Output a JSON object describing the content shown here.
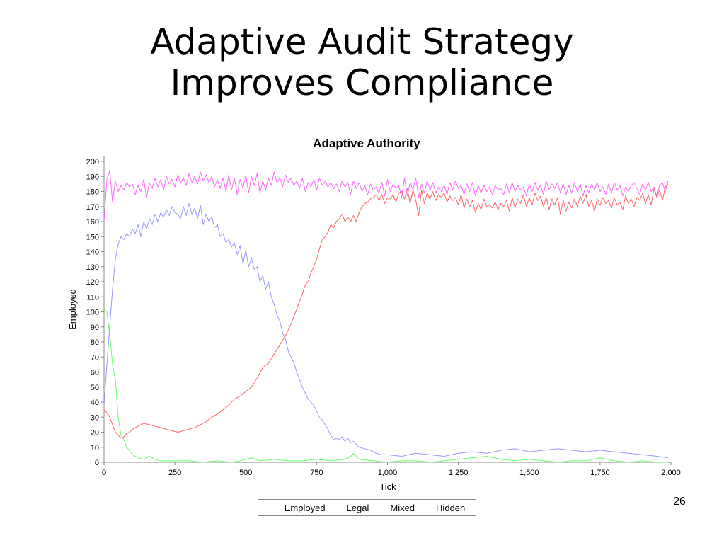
{
  "slide": {
    "title_line1": "Adaptive Audit Strategy",
    "title_line2": "Improves Compliance",
    "page_number": "26"
  },
  "chart_data": {
    "type": "line",
    "title": "Adaptive Authority",
    "xlabel": "Tick",
    "ylabel": "Employed",
    "xlim": [
      0,
      2000
    ],
    "ylim": [
      0,
      200
    ],
    "x_ticks": [
      0,
      250,
      500,
      750,
      1000,
      1250,
      1500,
      1750,
      2000
    ],
    "x_tick_labels": [
      "0",
      "250",
      "500",
      "750",
      "1,000",
      "1,250",
      "1,500",
      "1,750",
      "2,000"
    ],
    "y_ticks": [
      0,
      10,
      20,
      30,
      40,
      50,
      60,
      70,
      80,
      90,
      100,
      110,
      120,
      130,
      140,
      150,
      160,
      170,
      180,
      190,
      200
    ],
    "y_tick_labels": [
      "0",
      "10",
      "20",
      "30",
      "40",
      "50",
      "60",
      "70",
      "80",
      "90",
      "100",
      "110",
      "120",
      "130",
      "140",
      "150",
      "160",
      "170",
      "180",
      "190",
      "200"
    ],
    "grid": false,
    "legend_position": "bottom-center",
    "series": [
      {
        "name": "Employed",
        "color": "#ff66ff",
        "x": [
          0,
          10,
          20,
          30,
          40,
          50,
          60,
          70,
          80,
          90,
          100,
          110,
          120,
          130,
          140,
          150,
          160,
          170,
          180,
          190,
          200,
          210,
          220,
          230,
          240,
          250,
          260,
          270,
          280,
          290,
          300,
          310,
          320,
          330,
          340,
          350,
          360,
          370,
          380,
          390,
          400,
          410,
          420,
          430,
          440,
          450,
          460,
          470,
          480,
          490,
          500,
          510,
          520,
          530,
          540,
          550,
          560,
          570,
          580,
          590,
          600,
          610,
          620,
          630,
          640,
          650,
          660,
          670,
          680,
          690,
          700,
          710,
          720,
          730,
          740,
          750,
          760,
          770,
          780,
          790,
          800,
          810,
          820,
          830,
          840,
          850,
          860,
          870,
          880,
          890,
          900,
          910,
          920,
          930,
          940,
          950,
          960,
          970,
          980,
          990,
          1000,
          1010,
          1020,
          1030,
          1040,
          1050,
          1060,
          1070,
          1080,
          1090,
          1100,
          1110,
          1120,
          1130,
          1140,
          1150,
          1160,
          1170,
          1180,
          1190,
          1200,
          1210,
          1220,
          1230,
          1240,
          1250,
          1260,
          1270,
          1280,
          1290,
          1300,
          1310,
          1320,
          1330,
          1340,
          1350,
          1360,
          1370,
          1380,
          1390,
          1400,
          1410,
          1420,
          1430,
          1440,
          1450,
          1460,
          1470,
          1480,
          1490,
          1500,
          1510,
          1520,
          1530,
          1540,
          1550,
          1560,
          1570,
          1580,
          1590,
          1600,
          1610,
          1620,
          1630,
          1640,
          1650,
          1660,
          1670,
          1680,
          1690,
          1700,
          1710,
          1720,
          1730,
          1740,
          1750,
          1760,
          1770,
          1780,
          1790,
          1800,
          1810,
          1820,
          1830,
          1840,
          1850,
          1860,
          1870,
          1880,
          1890,
          1900,
          1910,
          1920,
          1930,
          1940,
          1950,
          1960,
          1970,
          1980,
          1990
        ],
        "y": [
          160,
          188,
          194,
          173,
          187,
          180,
          184,
          181,
          186,
          183,
          185,
          178,
          184,
          180,
          188,
          176,
          186,
          182,
          189,
          183,
          188,
          181,
          190,
          185,
          188,
          183,
          191,
          186,
          189,
          184,
          192,
          186,
          190,
          185,
          193,
          187,
          191,
          186,
          190,
          183,
          188,
          182,
          189,
          180,
          191,
          181,
          189,
          178,
          188,
          182,
          191,
          179,
          190,
          184,
          192,
          179,
          187,
          181,
          189,
          184,
          193,
          186,
          189,
          183,
          191,
          186,
          189,
          184,
          187,
          182,
          189,
          180,
          186,
          183,
          188,
          181,
          189,
          184,
          187,
          183,
          186,
          182,
          185,
          180,
          187,
          183,
          186,
          178,
          187,
          182,
          186,
          180,
          184,
          178,
          185,
          181,
          183,
          179,
          186,
          177,
          188,
          180,
          185,
          182,
          184,
          176,
          189,
          177,
          186,
          181,
          189,
          176,
          185,
          179,
          187,
          181,
          186,
          179,
          183,
          180,
          184,
          178,
          186,
          181,
          187,
          182,
          184,
          178,
          185,
          180,
          186,
          177,
          184,
          179,
          184,
          180,
          183,
          178,
          184,
          181,
          182,
          178,
          185,
          179,
          186,
          180,
          184,
          181,
          183,
          177,
          185,
          180,
          186,
          181,
          184,
          178,
          187,
          181,
          185,
          182,
          186,
          179,
          185,
          178,
          184,
          179,
          186,
          180,
          185,
          177,
          184,
          179,
          185,
          181,
          186,
          180,
          183,
          178,
          185,
          179,
          186,
          181,
          184,
          177,
          183,
          180,
          184,
          186,
          182,
          178,
          185,
          181,
          186,
          180,
          183,
          177,
          184,
          186,
          180,
          187
        ]
      },
      {
        "name": "Legal",
        "color": "#66ff66",
        "x": [
          0,
          10,
          20,
          30,
          40,
          50,
          60,
          70,
          80,
          90,
          100,
          120,
          140,
          160,
          180,
          200,
          250,
          300,
          350,
          400,
          450,
          480,
          500,
          520,
          550,
          600,
          650,
          700,
          750,
          800,
          850,
          870,
          880,
          900,
          950,
          1000,
          1050,
          1100,
          1150,
          1200,
          1250,
          1300,
          1350,
          1400,
          1450,
          1500,
          1550,
          1600,
          1650,
          1700,
          1750,
          1800,
          1850,
          1900,
          1950,
          1990
        ],
        "y": [
          102,
          100,
          85,
          65,
          55,
          30,
          18,
          15,
          10,
          8,
          5,
          3,
          2,
          4,
          2,
          1,
          1,
          1,
          0,
          1,
          0,
          1,
          2,
          3,
          1,
          2,
          1,
          1,
          2,
          1,
          2,
          4,
          6,
          2,
          1,
          0,
          1,
          1,
          0,
          1,
          2,
          3,
          4,
          2,
          1,
          2,
          1,
          0,
          1,
          1,
          3,
          1,
          0,
          1,
          0,
          0
        ]
      },
      {
        "name": "Mixed",
        "color": "#9999ff",
        "x": [
          0,
          10,
          20,
          30,
          40,
          50,
          60,
          70,
          80,
          90,
          100,
          110,
          120,
          130,
          140,
          150,
          160,
          170,
          180,
          190,
          200,
          210,
          220,
          230,
          240,
          250,
          260,
          270,
          280,
          290,
          300,
          310,
          320,
          330,
          340,
          350,
          360,
          370,
          380,
          390,
          400,
          410,
          420,
          430,
          440,
          450,
          460,
          470,
          480,
          490,
          500,
          510,
          520,
          530,
          540,
          550,
          560,
          570,
          580,
          590,
          600,
          610,
          620,
          630,
          640,
          650,
          660,
          670,
          680,
          690,
          700,
          710,
          720,
          730,
          740,
          750,
          760,
          770,
          780,
          790,
          800,
          810,
          820,
          830,
          840,
          850,
          860,
          870,
          880,
          890,
          900,
          920,
          940,
          960,
          980,
          1000,
          1050,
          1100,
          1150,
          1200,
          1250,
          1300,
          1350,
          1400,
          1450,
          1500,
          1550,
          1600,
          1650,
          1700,
          1750,
          1800,
          1850,
          1900,
          1950,
          1990
        ],
        "y": [
          38,
          65,
          90,
          115,
          135,
          145,
          150,
          148,
          152,
          150,
          155,
          152,
          158,
          150,
          160,
          155,
          162,
          158,
          165,
          160,
          166,
          163,
          168,
          164,
          170,
          166,
          165,
          162,
          170,
          164,
          172,
          165,
          169,
          162,
          171,
          158,
          165,
          160,
          163,
          156,
          158,
          150,
          152,
          146,
          148,
          143,
          146,
          138,
          144,
          132,
          141,
          130,
          136,
          128,
          130,
          120,
          124,
          115,
          120,
          110,
          105,
          98,
          94,
          86,
          82,
          74,
          70,
          66,
          60,
          55,
          50,
          46,
          42,
          40,
          38,
          34,
          30,
          28,
          25,
          22,
          18,
          15,
          16,
          15,
          17,
          14,
          16,
          13,
          14,
          12,
          10,
          9,
          8,
          6,
          5,
          5,
          4,
          6,
          5,
          4,
          6,
          7,
          6,
          8,
          9,
          7,
          8,
          9,
          8,
          7,
          8,
          7,
          6,
          5,
          4,
          3
        ]
      },
      {
        "name": "Hidden",
        "color": "#ff6666",
        "x": [
          0,
          10,
          20,
          30,
          40,
          50,
          60,
          70,
          80,
          90,
          100,
          120,
          140,
          160,
          180,
          200,
          220,
          240,
          260,
          280,
          300,
          320,
          340,
          360,
          380,
          400,
          420,
          440,
          460,
          480,
          500,
          520,
          540,
          560,
          580,
          600,
          620,
          640,
          660,
          680,
          700,
          710,
          720,
          730,
          740,
          750,
          760,
          770,
          780,
          790,
          800,
          810,
          820,
          830,
          840,
          850,
          860,
          870,
          880,
          890,
          900,
          910,
          920,
          930,
          940,
          950,
          960,
          970,
          980,
          990,
          1000,
          1010,
          1020,
          1030,
          1040,
          1050,
          1060,
          1070,
          1080,
          1090,
          1100,
          1110,
          1120,
          1130,
          1140,
          1150,
          1160,
          1170,
          1180,
          1190,
          1200,
          1210,
          1220,
          1230,
          1240,
          1250,
          1260,
          1270,
          1280,
          1290,
          1300,
          1310,
          1320,
          1330,
          1340,
          1350,
          1360,
          1370,
          1380,
          1390,
          1400,
          1410,
          1420,
          1430,
          1440,
          1450,
          1460,
          1470,
          1480,
          1490,
          1500,
          1510,
          1520,
          1530,
          1540,
          1550,
          1560,
          1570,
          1580,
          1590,
          1600,
          1610,
          1620,
          1630,
          1640,
          1650,
          1660,
          1670,
          1680,
          1690,
          1700,
          1710,
          1720,
          1730,
          1740,
          1750,
          1760,
          1770,
          1780,
          1790,
          1800,
          1810,
          1820,
          1830,
          1840,
          1850,
          1860,
          1870,
          1880,
          1890,
          1900,
          1910,
          1920,
          1930,
          1940,
          1950,
          1960,
          1970,
          1980,
          1990
        ],
        "y": [
          35,
          33,
          30,
          25,
          20,
          18,
          16,
          17,
          19,
          20,
          22,
          24,
          26,
          25,
          24,
          23,
          22,
          21,
          20,
          21,
          22,
          23,
          25,
          27,
          30,
          32,
          35,
          38,
          42,
          44,
          47,
          50,
          56,
          63,
          66,
          72,
          78,
          84,
          92,
          102,
          112,
          118,
          120,
          126,
          130,
          135,
          142,
          148,
          150,
          153,
          158,
          156,
          160,
          162,
          165,
          160,
          163,
          160,
          164,
          160,
          166,
          170,
          172,
          173,
          175,
          176,
          178,
          174,
          178,
          172,
          176,
          175,
          178,
          173,
          179,
          180,
          175,
          182,
          172,
          181,
          174,
          164,
          181,
          172,
          179,
          175,
          180,
          174,
          178,
          176,
          179,
          173,
          177,
          174,
          176,
          171,
          178,
          169,
          175,
          170,
          174,
          166,
          172,
          168,
          175,
          170,
          171,
          169,
          173,
          168,
          172,
          170,
          174,
          167,
          176,
          169,
          175,
          172,
          178,
          170,
          176,
          171,
          179,
          174,
          177,
          170,
          176,
          168,
          175,
          171,
          176,
          165,
          174,
          167,
          173,
          169,
          175,
          170,
          177,
          172,
          178,
          170,
          174,
          167,
          175,
          171,
          176,
          172,
          174,
          169,
          176,
          171,
          173,
          168,
          177,
          172,
          175,
          170,
          176,
          174,
          179,
          172,
          178,
          171,
          182,
          176,
          181,
          174,
          183,
          185
        ]
      }
    ]
  }
}
